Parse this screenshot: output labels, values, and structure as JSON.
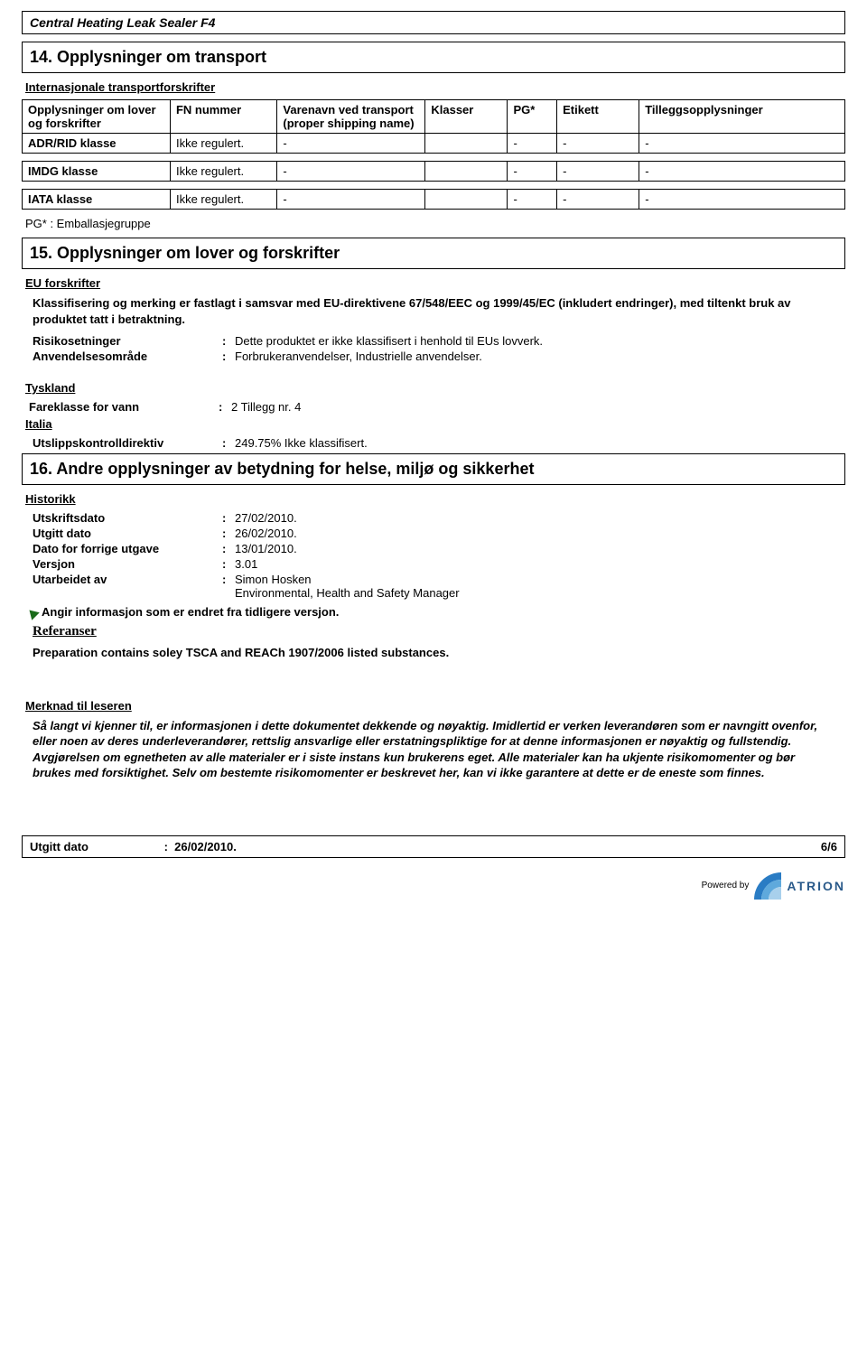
{
  "product_name": "Central Heating Leak Sealer F4",
  "section14": {
    "title": "14.  Opplysninger om transport",
    "sub": "Internasjonale transportforskrifter",
    "headers": [
      "Opplysninger om lover og forskrifter",
      "FN nummer",
      "Varenavn ved transport (proper shipping name)",
      "Klasser",
      "PG*",
      "Etikett",
      "Tilleggsopplysninger"
    ],
    "rows": [
      {
        "label": "ADR/RID klasse",
        "fn": "Ikke regulert.",
        "c1": "-",
        "c2": "",
        "c3": "-",
        "c4": "-",
        "c5": "-"
      },
      {
        "label": "IMDG klasse",
        "fn": "Ikke regulert.",
        "c1": "-",
        "c2": "",
        "c3": "-",
        "c4": "-",
        "c5": "-"
      },
      {
        "label": "IATA klasse",
        "fn": "Ikke regulert.",
        "c1": "-",
        "c2": "",
        "c3": "-",
        "c4": "-",
        "c5": "-"
      }
    ],
    "footnote": "PG* : Emballasjegruppe"
  },
  "section15": {
    "title": "15.  Opplysninger om lover og forskrifter",
    "sub": "EU forskrifter",
    "intro": "Klassifisering og merking er fastlagt i samsvar med EU-direktivene 67/548/EEC og 1999/45/EC (inkludert endringer), med tiltenkt bruk av produktet tatt i betraktning.",
    "items": [
      {
        "label": "Risikosetninger",
        "value": "Dette produktet er ikke klassifisert i henhold til EUs lovverk."
      },
      {
        "label": "Anvendelsesområde",
        "value": "Forbrukeranvendelser, Industrielle anvendelser."
      }
    ],
    "tyskland": "Tyskland",
    "fareklasse_label": "Fareklasse for vann",
    "fareklasse_value": "2 Tillegg nr. 4",
    "italia": "Italia",
    "utslipp_label": "Utslippskontrolldirektiv",
    "utslipp_value": "249.75% Ikke klassifisert."
  },
  "section16": {
    "title": "16.  Andre opplysninger av betydning for helse, miljø og sikkerhet",
    "sub": "Historikk",
    "items": [
      {
        "label": "Utskriftsdato",
        "value": "27/02/2010."
      },
      {
        "label": "Utgitt dato",
        "value": "26/02/2010."
      },
      {
        "label": "Dato for forrige utgave",
        "value": "13/01/2010."
      },
      {
        "label": "Versjon",
        "value": "3.01"
      },
      {
        "label": "Utarbeidet av",
        "value": "Simon Hosken\nEnvironmental, Health and Safety Manager"
      }
    ],
    "changed_note": "Angir informasjon som er endret fra tidligere versjon.",
    "referanser": "Referanser",
    "ref_text": "Preparation contains soley TSCA and REACh 1907/2006 listed substances.",
    "reader_heading": "Merknad til leseren",
    "reader_text": "Så langt vi kjenner til, er informasjonen i dette dokumentet dekkende og nøyaktig. Imidlertid er verken leverandøren som er navngitt ovenfor, eller noen av deres underleverandører, rettslig ansvarlige eller erstatningspliktige for at denne informasjonen er nøyaktig og fullstendig. Avgjørelsen om egnetheten av alle materialer er i siste instans kun brukerens eget. Alle materialer kan ha ukjente risikomomenter og bør brukes med forsiktighet. Selv om bestemte risikomomenter er beskrevet her, kan vi ikke garantere at dette er de eneste som finnes."
  },
  "footer": {
    "left_label": "Utgitt dato",
    "left_value": "26/02/2010.",
    "right": "6/6"
  },
  "powered": "Powered by",
  "brand": "ATRION",
  "colors": {
    "marker": "#1a6b1a",
    "logo1": "#2a7cc4",
    "logo2": "#5fa9dc",
    "logo3": "#a8d0ec"
  }
}
